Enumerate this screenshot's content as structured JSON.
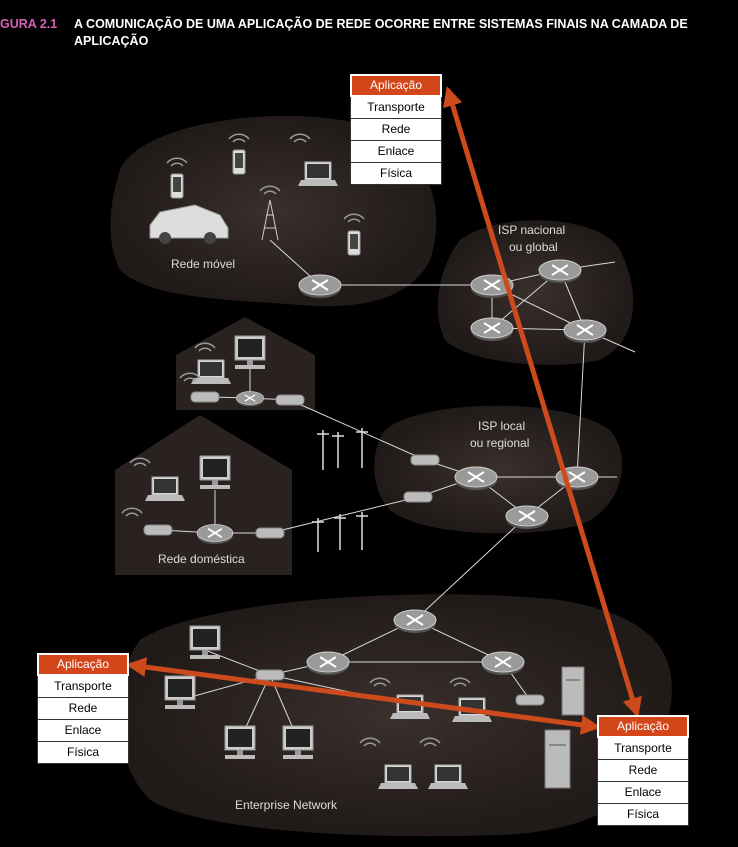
{
  "caption": {
    "figure_number": "GURA 2.1",
    "title": "A COMUNICAÇÃO DE UMA APLICAÇÃO DE REDE OCORRE ENTRE SISTEMAS FINAIS NA CAMADA DE APLICAÇÃO"
  },
  "regions": {
    "mobile": "Rede móvel",
    "national_isp_line1": "ISP nacional",
    "national_isp_line2": "ou global",
    "local_isp_line1": "ISP local",
    "local_isp_line2": "ou regional",
    "home": "Rede doméstica",
    "enterprise": "Enterprise Network"
  },
  "stacks": {
    "top": [
      "Aplicação",
      "Transporte",
      "Rede",
      "Enlace",
      "Física"
    ],
    "left": [
      "Aplicação",
      "Transporte",
      "Rede",
      "Enlace",
      "Física"
    ],
    "right": [
      "Aplicação",
      "Transporte",
      "Rede",
      "Enlace",
      "Física"
    ]
  },
  "colors": {
    "arrow": "#cc4a1c",
    "app_layer": "#d2461a",
    "region_fill": "#2a2220",
    "router": "#8a8a8a",
    "link": "#d8d8d8"
  }
}
